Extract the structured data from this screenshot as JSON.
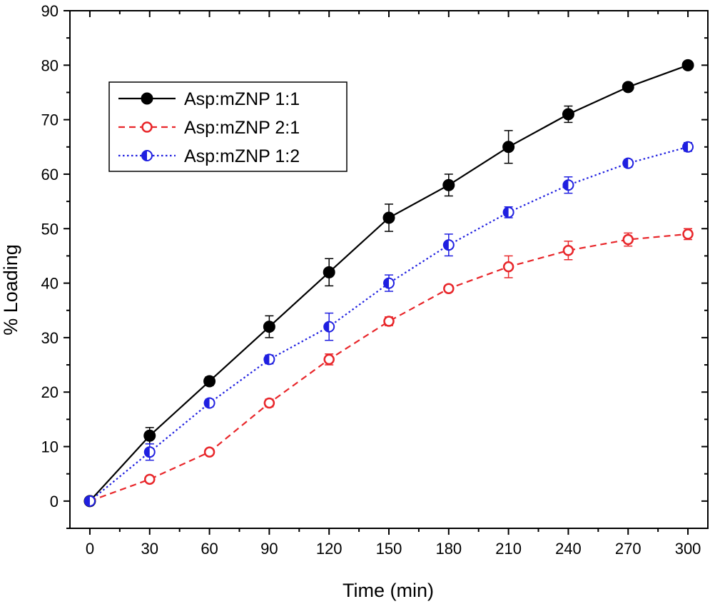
{
  "chart_data": {
    "type": "line",
    "title": "",
    "xlabel": "Time (min)",
    "ylabel": "% Loading",
    "xlim": [
      -10,
      310
    ],
    "ylim": [
      -5,
      90
    ],
    "x": [
      0,
      30,
      60,
      90,
      120,
      150,
      180,
      210,
      240,
      270,
      300
    ],
    "xticks": [
      0,
      30,
      60,
      90,
      120,
      150,
      180,
      210,
      240,
      270,
      300
    ],
    "xtick_labels": [
      "0",
      "30",
      "60",
      "90",
      "120",
      "150",
      "180",
      "210",
      "240",
      "270",
      "300"
    ],
    "yticks": [
      0,
      10,
      20,
      30,
      40,
      50,
      60,
      70,
      80,
      90
    ],
    "ytick_labels": [
      "0",
      "10",
      "20",
      "30",
      "40",
      "50",
      "60",
      "70",
      "80",
      "90"
    ],
    "grid": false,
    "legend_position": "top-left",
    "series": [
      {
        "name": "Asp:mZNP 1:1",
        "color": "#000000",
        "line_style": "solid",
        "marker": "filled-circle",
        "values": [
          0,
          12,
          22,
          32,
          42,
          52,
          58,
          65,
          71,
          76,
          80
        ],
        "errors": [
          0,
          1.5,
          0.8,
          2,
          2.5,
          2.5,
          2,
          3,
          1.5,
          0.7,
          0.7
        ]
      },
      {
        "name": "Asp:mZNP 2:1",
        "color": "#e8262a",
        "line_style": "dashed",
        "marker": "open-circle",
        "values": [
          0,
          4,
          9,
          18,
          26,
          33,
          39,
          43,
          46,
          48,
          49
        ],
        "errors": [
          0,
          0.5,
          0.5,
          0.7,
          1,
          0.8,
          0.6,
          2,
          1.7,
          1.2,
          1
        ]
      },
      {
        "name": "Asp:mZNP 1:2",
        "color": "#1f1fe0",
        "line_style": "dotted",
        "marker": "half-filled-circle",
        "values": [
          0,
          9,
          18,
          26,
          32,
          40,
          47,
          53,
          58,
          62,
          65
        ],
        "errors": [
          0,
          1.5,
          0.7,
          0.8,
          2.5,
          1.5,
          2,
          1,
          1.5,
          0.7,
          0.8
        ]
      }
    ]
  }
}
